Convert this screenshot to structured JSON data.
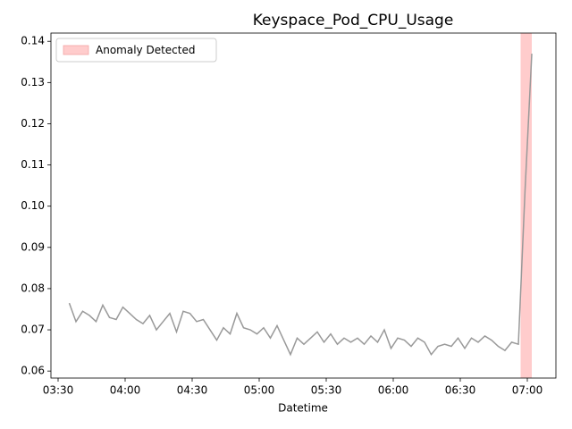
{
  "chart_data": {
    "type": "line",
    "title": "Keyspace_Pod_CPU_Usage",
    "xlabel": "Datetime",
    "x": [
      "03:35",
      "03:38",
      "03:41",
      "03:44",
      "03:47",
      "03:50",
      "03:53",
      "03:56",
      "03:59",
      "04:02",
      "04:05",
      "04:08",
      "04:11",
      "04:14",
      "04:17",
      "04:20",
      "04:23",
      "04:26",
      "04:29",
      "04:32",
      "04:35",
      "04:38",
      "04:41",
      "04:44",
      "04:47",
      "04:50",
      "04:53",
      "04:56",
      "04:59",
      "05:02",
      "05:05",
      "05:08",
      "05:11",
      "05:14",
      "05:17",
      "05:20",
      "05:23",
      "05:26",
      "05:29",
      "05:32",
      "05:35",
      "05:38",
      "05:41",
      "05:44",
      "05:47",
      "05:50",
      "05:53",
      "05:56",
      "05:59",
      "06:02",
      "06:05",
      "06:08",
      "06:11",
      "06:14",
      "06:17",
      "06:20",
      "06:23",
      "06:26",
      "06:29",
      "06:32",
      "06:35",
      "06:38",
      "06:41",
      "06:44",
      "06:47",
      "06:50",
      "06:53",
      "06:56",
      "06:59",
      "07:02"
    ],
    "series": [
      {
        "color": "#999999",
        "values": [
          0.0765,
          0.072,
          0.0745,
          0.0735,
          0.072,
          0.076,
          0.073,
          0.0725,
          0.0755,
          0.074,
          0.0725,
          0.0715,
          0.0735,
          0.07,
          0.072,
          0.074,
          0.0695,
          0.0745,
          0.074,
          0.072,
          0.0725,
          0.07,
          0.0675,
          0.0705,
          0.069,
          0.074,
          0.0705,
          0.07,
          0.069,
          0.0705,
          0.068,
          0.071,
          0.0675,
          0.064,
          0.068,
          0.0665,
          0.068,
          0.0695,
          0.067,
          0.069,
          0.0665,
          0.068,
          0.067,
          0.068,
          0.0665,
          0.0685,
          0.067,
          0.07,
          0.0655,
          0.068,
          0.0675,
          0.066,
          0.068,
          0.067,
          0.064,
          0.066,
          0.0665,
          0.066,
          0.068,
          0.0655,
          0.068,
          0.067,
          0.0685,
          0.0675,
          0.066,
          0.065,
          0.067,
          0.0665,
          0.104,
          0.137
        ]
      }
    ],
    "anomalies": [
      {
        "name": "Anomaly Detected",
        "color": "#ffcccc",
        "start": "06:57",
        "end": "07:02"
      }
    ],
    "xlim": [
      "03:26:48",
      "07:12:48"
    ],
    "xticks": [
      "03:30",
      "04:00",
      "04:30",
      "05:00",
      "05:30",
      "06:00",
      "06:30",
      "07:00"
    ],
    "ylim": [
      0.0583,
      0.142
    ],
    "yticks": [
      0.06,
      0.07,
      0.08,
      0.09,
      {
        "value": 0.1,
        "label": "0.10"
      },
      0.11,
      0.12,
      0.13,
      0.14
    ],
    "legend": "upper left"
  }
}
